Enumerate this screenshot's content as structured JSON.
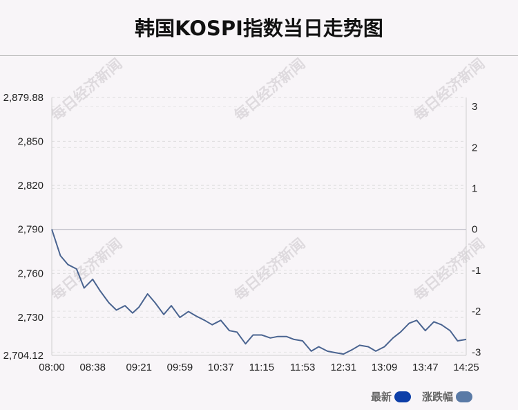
{
  "chart_data": {
    "type": "line",
    "title": "韩国KOSPI指数当日走势图",
    "x_ticks": [
      "08:00",
      "08:38",
      "09:21",
      "09:59",
      "10:37",
      "11:15",
      "11:53",
      "12:31",
      "13:09",
      "13:47",
      "14:25"
    ],
    "y_left_ticks": [
      "2,879.88",
      "2,850",
      "2,820",
      "2,790",
      "2,760",
      "2,730",
      "2,704.12"
    ],
    "y_left_values": [
      2879.88,
      2850,
      2820,
      2790,
      2760,
      2730,
      2704.12
    ],
    "y_right_ticks": [
      "3",
      "2",
      "1",
      "0",
      "-1",
      "-2",
      "-3"
    ],
    "y_right_values": [
      3,
      2,
      1,
      0,
      -1,
      -2,
      -3
    ],
    "ylim": [
      2704.12,
      2879.88
    ],
    "prev_close": 2790,
    "grid": true,
    "legend": {
      "position": "bottom-right",
      "entries": [
        {
          "label": "最新",
          "color": "#0d3ea8"
        },
        {
          "label": "涨跌幅",
          "color": "#5a7aa6"
        }
      ]
    },
    "series": [
      {
        "color": "#4a6490",
        "x": [
          "08:00",
          "08:08",
          "08:15",
          "08:23",
          "08:30",
          "08:38",
          "08:45",
          "08:53",
          "09:00",
          "09:08",
          "09:15",
          "09:21",
          "09:29",
          "09:36",
          "09:44",
          "09:51",
          "09:59",
          "10:07",
          "10:14",
          "10:22",
          "10:29",
          "10:37",
          "10:45",
          "10:52",
          "11:00",
          "11:07",
          "11:15",
          "11:23",
          "11:30",
          "11:38",
          "11:45",
          "11:53",
          "12:01",
          "12:08",
          "12:16",
          "12:23",
          "12:31",
          "12:39",
          "12:46",
          "12:54",
          "13:01",
          "13:09",
          "13:17",
          "13:24",
          "13:32",
          "13:39",
          "13:47",
          "13:55",
          "14:02",
          "14:10",
          "14:17",
          "14:25"
        ],
        "values": [
          2790,
          2772,
          2766,
          2763,
          2750,
          2756,
          2748,
          2740,
          2735,
          2738,
          2733,
          2737,
          2746,
          2740,
          2732,
          2738,
          2730,
          2734,
          2731,
          2728,
          2725,
          2728,
          2721,
          2720,
          2712,
          2718,
          2718,
          2716,
          2717,
          2717,
          2715,
          2714,
          2707,
          2710,
          2707,
          2706,
          2705,
          2708,
          2711,
          2710,
          2707,
          2710,
          2716,
          2720,
          2726,
          2728,
          2721,
          2727,
          2725,
          2721,
          2714,
          2715
        ]
      }
    ],
    "watermark": "每日经济新闻"
  }
}
